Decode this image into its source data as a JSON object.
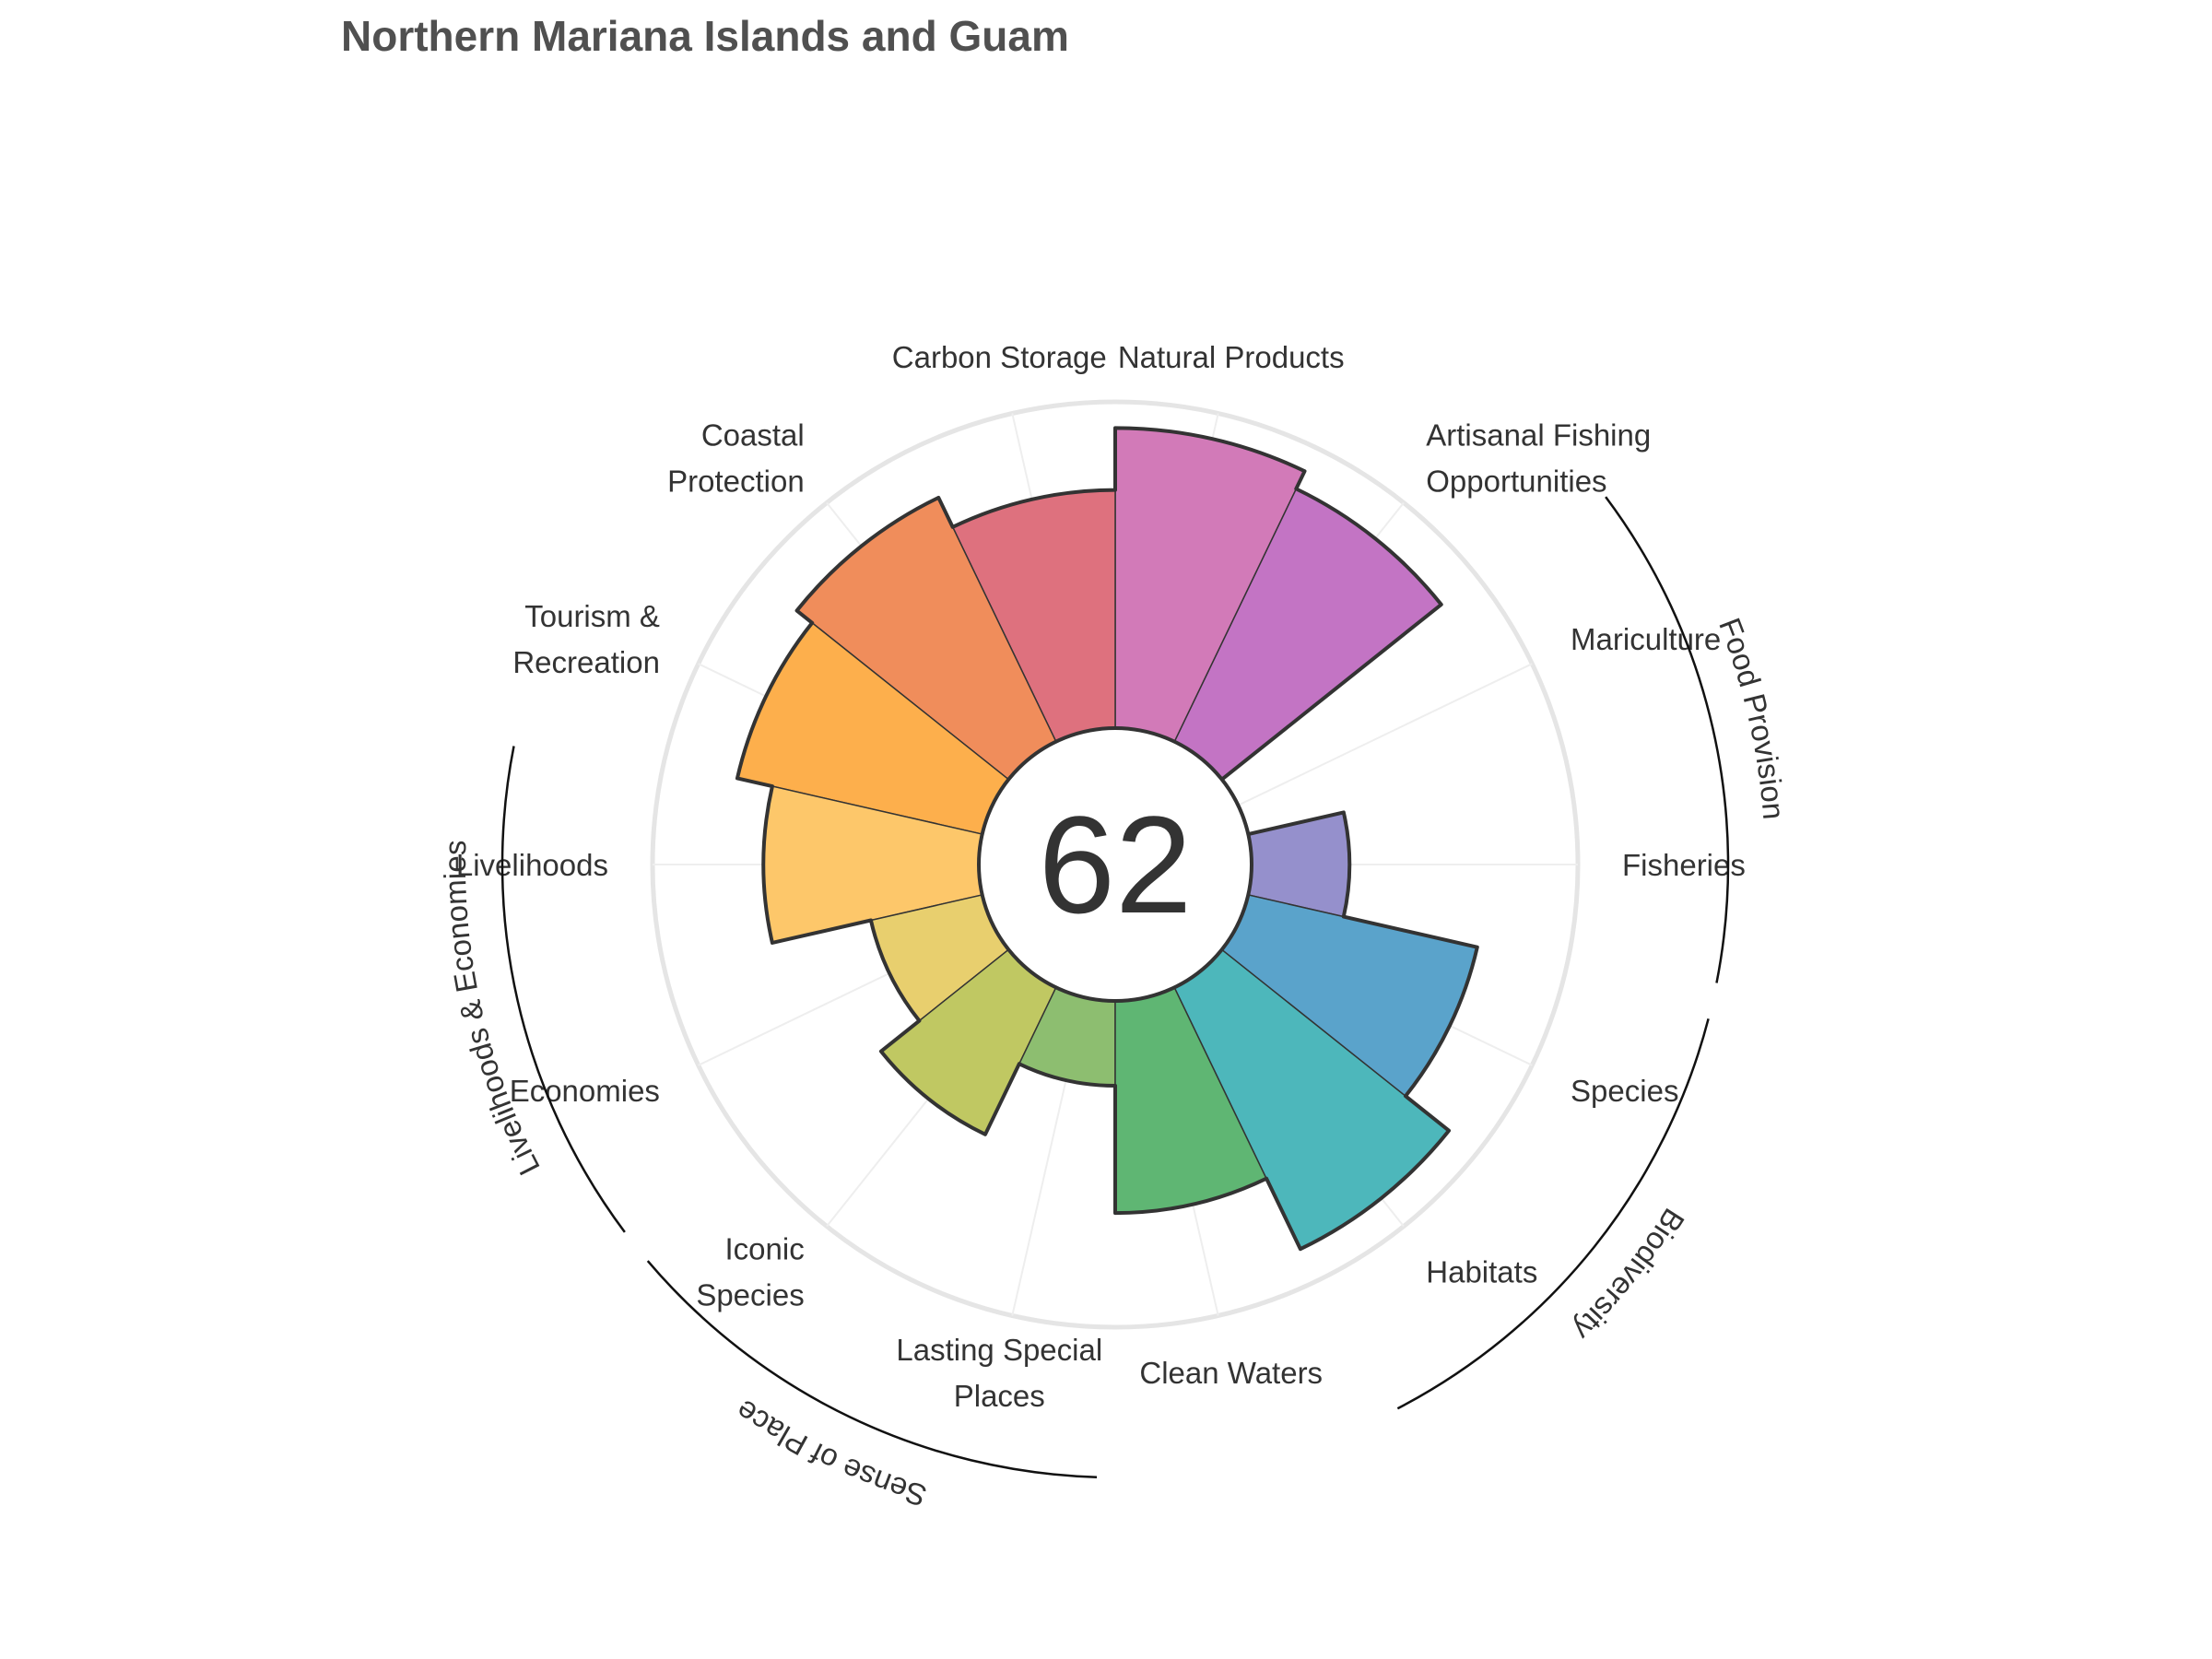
{
  "chart_data": {
    "type": "polar-bar",
    "title": "Northern Mariana Islands and Guam",
    "center_score": "62",
    "r_max": 100,
    "grid": true,
    "categories": [
      {
        "key": "fisheries",
        "lines": [
          "Fisheries"
        ],
        "value": 30,
        "color": "#9590CC"
      },
      {
        "key": "mariculture",
        "lines": [
          "Mariculture"
        ],
        "value": 0,
        "color": "#A57ED0"
      },
      {
        "key": "artisanal",
        "lines": [
          "Artisanal Fishing",
          "Opportunities"
        ],
        "value": 86,
        "color": "#C374C4"
      },
      {
        "key": "natural_products",
        "lines": [
          "Natural Products"
        ],
        "value": 92,
        "color": "#D27AB8"
      },
      {
        "key": "carbon_storage",
        "lines": [
          "Carbon Storage"
        ],
        "value": 73,
        "color": "#DE717E"
      },
      {
        "key": "coastal_protection",
        "lines": [
          "Coastal",
          "Protection"
        ],
        "value": 83,
        "color": "#F08D5B"
      },
      {
        "key": "tourism",
        "lines": [
          "Tourism &",
          "Recreation"
        ],
        "value": 77,
        "color": "#FDAF4C"
      },
      {
        "key": "livelihoods",
        "lines": [
          "Livelihoods"
        ],
        "value": 66,
        "color": "#FDC76A"
      },
      {
        "key": "economies",
        "lines": [
          "Economies"
        ],
        "value": 35,
        "color": "#E8CF6E"
      },
      {
        "key": "iconic_species",
        "lines": [
          "Iconic",
          "Species"
        ],
        "value": 50,
        "color": "#C0C862"
      },
      {
        "key": "lasting_special_places",
        "lines": [
          "Lasting Special",
          "Places"
        ],
        "value": 26,
        "color": "#8DBE70"
      },
      {
        "key": "clean_waters",
        "lines": [
          "Clean Waters"
        ],
        "value": 65,
        "color": "#5FB673"
      },
      {
        "key": "habitats",
        "lines": [
          "Habitats"
        ],
        "value": 89,
        "color": "#4DB7BB"
      },
      {
        "key": "species",
        "lines": [
          "Species"
        ],
        "value": 72,
        "color": "#5AA3CB"
      }
    ],
    "groups": [
      {
        "name": "Food Provision",
        "members": [
          "fisheries",
          "mariculture"
        ]
      },
      {
        "name": "Biodiversity",
        "members": [
          "habitats",
          "species"
        ]
      },
      {
        "name": "Sense of Place",
        "members": [
          "iconic_species",
          "lasting_special_places"
        ]
      },
      {
        "name": "Livelihoods & Economies",
        "members": [
          "livelihoods",
          "economies"
        ]
      }
    ]
  }
}
